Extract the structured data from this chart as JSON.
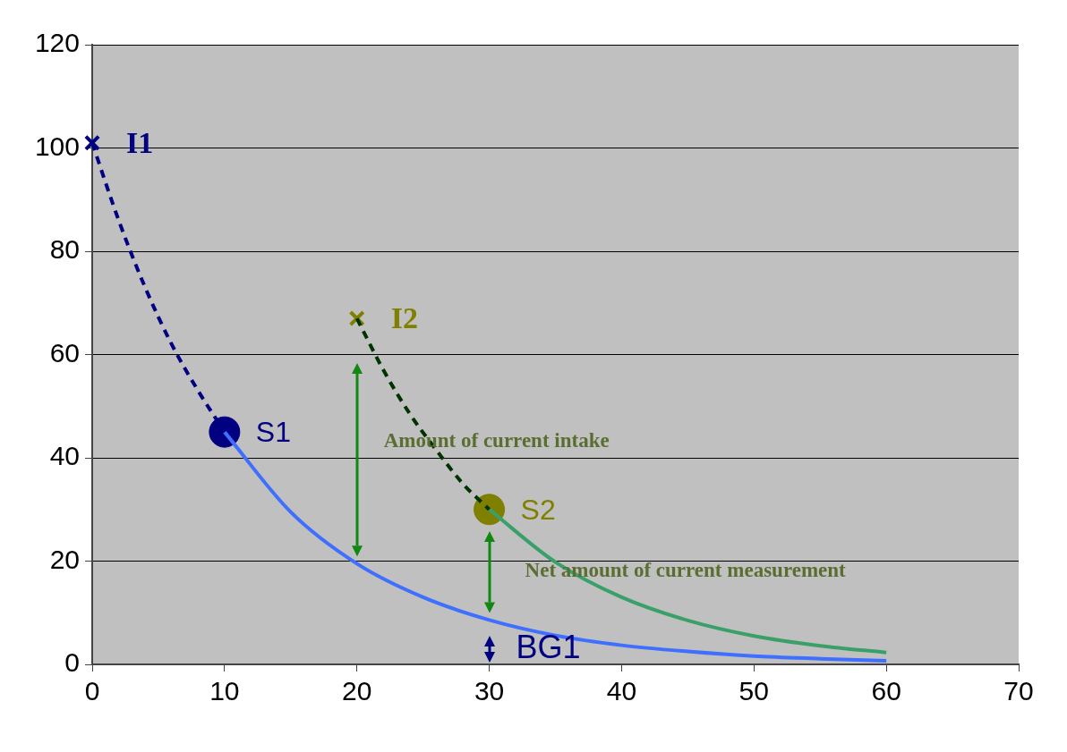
{
  "chart_data": {
    "type": "line",
    "xlim": [
      0,
      70
    ],
    "xticks": [
      0,
      10,
      20,
      30,
      40,
      50,
      60,
      70
    ],
    "ylim": [
      0,
      120
    ],
    "yticks": [
      0,
      20,
      40,
      60,
      80,
      100,
      120
    ],
    "grid": "y",
    "legend": false,
    "series": [
      {
        "type": "line",
        "color": "#000080",
        "line_style": "dashed",
        "marker": "none",
        "x": [
          0,
          2,
          4,
          6,
          8,
          10
        ],
        "values": [
          101,
          86,
          73,
          62,
          53,
          45
        ]
      },
      {
        "type": "line",
        "color": "#3f6fff",
        "line_style": "solid",
        "marker": "none",
        "x": [
          10,
          15,
          20,
          25,
          30,
          35,
          40,
          45,
          50,
          55,
          60
        ],
        "values": [
          45,
          29.5,
          19.5,
          13,
          8.6,
          5.6,
          3.7,
          2.5,
          1.6,
          1.1,
          0.7
        ]
      },
      {
        "type": "line",
        "color": "#003300",
        "line_style": "dashed",
        "marker": "none",
        "x": [
          20,
          22,
          24,
          26,
          28,
          30
        ],
        "values": [
          67,
          57,
          48.5,
          41.5,
          35,
          30
        ]
      },
      {
        "type": "line",
        "color": "#3aa06a",
        "line_style": "solid",
        "marker": "none",
        "x": [
          30,
          35,
          40,
          45,
          50,
          55,
          60
        ],
        "values": [
          30,
          19.8,
          13,
          8.5,
          5.5,
          3.6,
          2.3
        ]
      },
      {
        "type": "scatter",
        "name": "I1",
        "color": "#000080",
        "marker": "cross",
        "x": [
          0
        ],
        "values": [
          101
        ]
      },
      {
        "type": "scatter",
        "name": "S1",
        "color": "#000080",
        "marker": "circle",
        "x": [
          10
        ],
        "values": [
          45
        ]
      },
      {
        "type": "scatter",
        "name": "I2",
        "color": "#808000",
        "marker": "cross",
        "x": [
          20
        ],
        "values": [
          67
        ]
      },
      {
        "type": "scatter",
        "name": "S2",
        "color": "#808000",
        "marker": "circle",
        "x": [
          30
        ],
        "values": [
          30
        ]
      }
    ],
    "annotations": [
      "Amount of current intake",
      "Net amount of current measurement",
      "BG1"
    ]
  }
}
